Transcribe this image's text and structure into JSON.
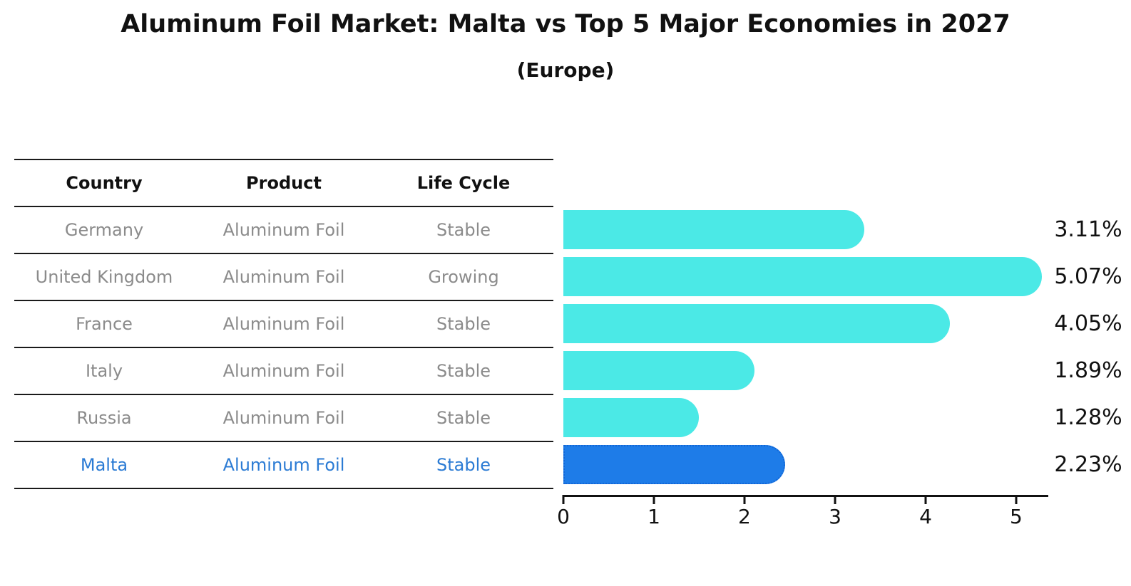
{
  "title": "Aluminum Foil Market: Malta vs Top 5 Major Economies in 2027",
  "subtitle": "(Europe)",
  "table": {
    "headers": [
      "Country",
      "Product",
      "Life Cycle"
    ],
    "rows": [
      {
        "country": "Germany",
        "product": "Aluminum Foil",
        "life_cycle": "Stable",
        "highlight": false
      },
      {
        "country": "United Kingdom",
        "product": "Aluminum Foil",
        "life_cycle": "Growing",
        "highlight": false
      },
      {
        "country": "France",
        "product": "Aluminum Foil",
        "life_cycle": "Stable",
        "highlight": false
      },
      {
        "country": "Italy",
        "product": "Aluminum Foil",
        "life_cycle": "Stable",
        "highlight": false
      },
      {
        "country": "Russia",
        "product": "Aluminum Foil",
        "life_cycle": "Stable",
        "highlight": false
      },
      {
        "country": "Malta",
        "product": "Aluminum Foil",
        "life_cycle": "Stable",
        "highlight": true
      }
    ]
  },
  "chart_data": {
    "type": "bar",
    "orientation": "horizontal",
    "title": "Aluminum Foil Market: Malta vs Top 5 Major Economies in 2027",
    "subtitle": "(Europe)",
    "categories": [
      "Germany",
      "United Kingdom",
      "France",
      "Italy",
      "Russia",
      "Malta"
    ],
    "values": [
      3.11,
      5.07,
      4.05,
      1.89,
      1.28,
      2.23
    ],
    "value_labels": [
      "3.11%",
      "5.07%",
      "4.05%",
      "1.89%",
      "1.28%",
      "2.23%"
    ],
    "x_ticks": [
      0,
      1,
      2,
      3,
      4,
      5
    ],
    "xlim": [
      0,
      5.35
    ],
    "grid": false,
    "legend": "none",
    "highlight_index": 5,
    "colors": {
      "bar": "#4BE9E6",
      "highlight_bar": "#1E7CE8",
      "highlight_border": "#1266D6",
      "highlight_text": "#2B7BD4",
      "table_text": "#8B8B8B",
      "text": "#111111"
    }
  }
}
